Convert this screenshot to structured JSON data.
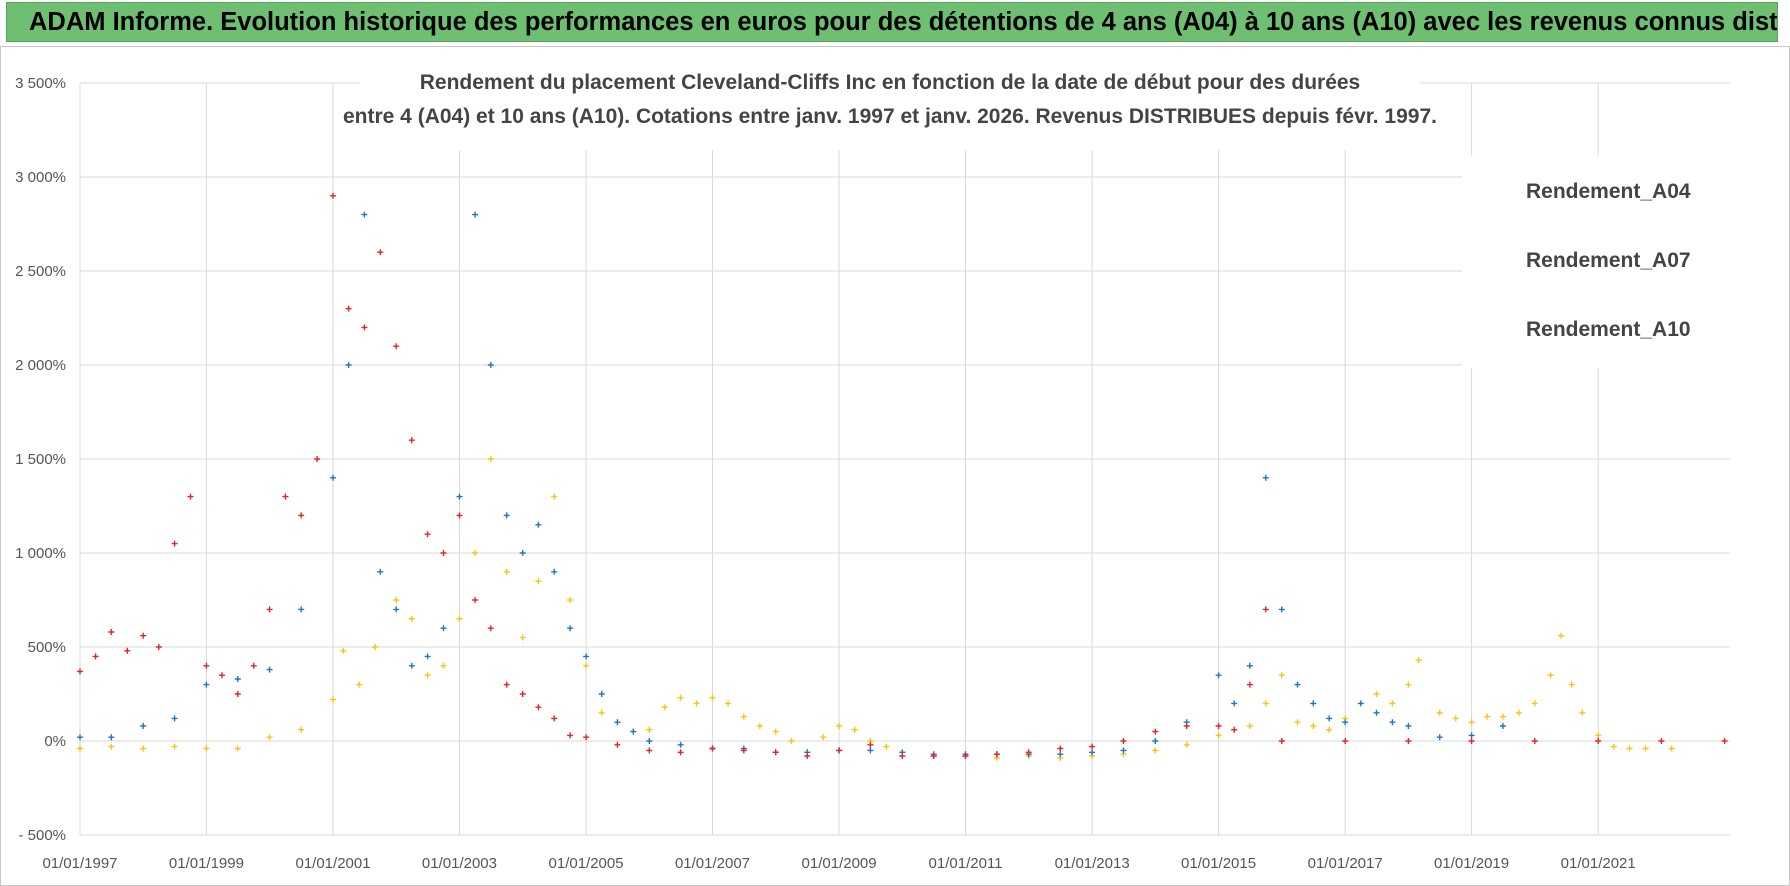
{
  "banner": {
    "title": "ADAM Informe. Evolution historique des performances en euros pour des détentions de 4 ans (A04) à 10 ans (A10) avec les revenus connus distribués"
  },
  "chart_data": {
    "type": "scatter",
    "title": "Rendement du placement Cleveland-Cliffs Inc en fonction de la date de début pour des durées",
    "subtitle": "entre 4 (A04) et 10 ans (A10). Cotations entre janv. 1997 et janv. 2026. Revenus DISTRIBUES depuis févr. 1997.",
    "xlabel": "",
    "ylabel": "",
    "x_range": [
      "1997-01-01",
      "2023-02-01"
    ],
    "ylim": [
      -500,
      3500
    ],
    "y_ticks": [
      -500,
      0,
      500,
      1000,
      1500,
      2000,
      2500,
      3000,
      3500
    ],
    "y_tick_labels": [
      "- 500%",
      "0%",
      "500%",
      "1 000%",
      "1 500%",
      "2 000%",
      "2 500%",
      "3 000%",
      "3 500%"
    ],
    "x_tick_labels": [
      "01/01/1997",
      "01/01/1999",
      "01/01/2001",
      "01/01/2003",
      "01/01/2005",
      "01/01/2007",
      "01/01/2009",
      "01/01/2011",
      "01/01/2013",
      "01/01/2015",
      "01/01/2017",
      "01/01/2019",
      "01/01/2021"
    ],
    "grid": true,
    "legend_position": "top-right",
    "series": [
      {
        "name": "Rendement_A04",
        "color": "#f5c518",
        "points": [
          [
            "1997-01-01",
            -40
          ],
          [
            "1997-07-01",
            -30
          ],
          [
            "1998-01-01",
            -40
          ],
          [
            "1998-07-01",
            -30
          ],
          [
            "1999-01-01",
            -40
          ],
          [
            "1999-07-01",
            -40
          ],
          [
            "2000-01-01",
            20
          ],
          [
            "2000-07-01",
            60
          ],
          [
            "2001-01-01",
            220
          ],
          [
            "2001-03-01",
            480
          ],
          [
            "2001-06-01",
            300
          ],
          [
            "2001-09-01",
            500
          ],
          [
            "2002-01-01",
            750
          ],
          [
            "2002-04-01",
            650
          ],
          [
            "2002-07-01",
            350
          ],
          [
            "2002-10-01",
            400
          ],
          [
            "2003-01-01",
            650
          ],
          [
            "2003-04-01",
            1000
          ],
          [
            "2003-07-01",
            1500
          ],
          [
            "2003-10-01",
            900
          ],
          [
            "2004-01-01",
            550
          ],
          [
            "2004-04-01",
            850
          ],
          [
            "2004-07-01",
            1300
          ],
          [
            "2004-10-01",
            750
          ],
          [
            "2005-01-01",
            400
          ],
          [
            "2005-04-01",
            150
          ],
          [
            "2005-07-01",
            100
          ],
          [
            "2005-10-01",
            50
          ],
          [
            "2006-01-01",
            60
          ],
          [
            "2006-04-01",
            180
          ],
          [
            "2006-07-01",
            230
          ],
          [
            "2006-10-01",
            200
          ],
          [
            "2007-01-01",
            230
          ],
          [
            "2007-04-01",
            200
          ],
          [
            "2007-07-01",
            130
          ],
          [
            "2007-10-01",
            80
          ],
          [
            "2008-01-01",
            50
          ],
          [
            "2008-04-01",
            0
          ],
          [
            "2008-07-01",
            -60
          ],
          [
            "2008-10-01",
            20
          ],
          [
            "2009-01-01",
            80
          ],
          [
            "2009-04-01",
            60
          ],
          [
            "2009-07-01",
            0
          ],
          [
            "2009-10-01",
            -30
          ],
          [
            "2010-01-01",
            -60
          ],
          [
            "2010-07-01",
            -80
          ],
          [
            "2011-01-01",
            -80
          ],
          [
            "2011-07-01",
            -90
          ],
          [
            "2012-01-01",
            -80
          ],
          [
            "2012-07-01",
            -90
          ],
          [
            "2013-01-01",
            -80
          ],
          [
            "2013-07-01",
            -70
          ],
          [
            "2014-01-01",
            -50
          ],
          [
            "2014-07-01",
            -20
          ],
          [
            "2015-01-01",
            30
          ],
          [
            "2015-04-01",
            60
          ],
          [
            "2015-07-01",
            80
          ],
          [
            "2015-10-01",
            200
          ],
          [
            "2016-01-01",
            350
          ],
          [
            "2016-04-01",
            100
          ],
          [
            "2016-07-01",
            80
          ],
          [
            "2016-10-01",
            60
          ],
          [
            "2017-01-01",
            120
          ],
          [
            "2017-04-01",
            200
          ],
          [
            "2017-07-01",
            250
          ],
          [
            "2017-10-01",
            200
          ],
          [
            "2018-01-01",
            300
          ],
          [
            "2018-03-01",
            430
          ],
          [
            "2018-07-01",
            150
          ],
          [
            "2018-10-01",
            120
          ],
          [
            "2019-01-01",
            100
          ],
          [
            "2019-04-01",
            130
          ],
          [
            "2019-07-01",
            130
          ],
          [
            "2019-10-01",
            150
          ],
          [
            "2020-01-01",
            200
          ],
          [
            "2020-04-01",
            350
          ],
          [
            "2020-06-01",
            560
          ],
          [
            "2020-08-01",
            300
          ],
          [
            "2020-10-01",
            150
          ],
          [
            "2021-01-01",
            30
          ],
          [
            "2021-04-01",
            -30
          ],
          [
            "2021-07-01",
            -40
          ],
          [
            "2021-10-01",
            -40
          ],
          [
            "2022-03-01",
            -40
          ]
        ]
      },
      {
        "name": "Rendement_A07",
        "color": "#1f77c4",
        "points": [
          [
            "1997-01-01",
            20
          ],
          [
            "1997-07-01",
            20
          ],
          [
            "1998-01-01",
            80
          ],
          [
            "1998-07-01",
            120
          ],
          [
            "1999-01-01",
            300
          ],
          [
            "1999-07-01",
            330
          ],
          [
            "2000-01-01",
            380
          ],
          [
            "2000-07-01",
            700
          ],
          [
            "2001-01-01",
            1400
          ],
          [
            "2001-04-01",
            2000
          ],
          [
            "2001-07-01",
            2800
          ],
          [
            "2001-10-01",
            900
          ],
          [
            "2002-01-01",
            700
          ],
          [
            "2002-04-01",
            400
          ],
          [
            "2002-07-01",
            450
          ],
          [
            "2002-10-01",
            600
          ],
          [
            "2003-01-01",
            1300
          ],
          [
            "2003-04-01",
            2800
          ],
          [
            "2003-07-01",
            2000
          ],
          [
            "2003-10-01",
            1200
          ],
          [
            "2004-01-01",
            1000
          ],
          [
            "2004-04-01",
            1150
          ],
          [
            "2004-07-01",
            900
          ],
          [
            "2004-10-01",
            600
          ],
          [
            "2005-01-01",
            450
          ],
          [
            "2005-04-01",
            250
          ],
          [
            "2005-07-01",
            100
          ],
          [
            "2005-10-01",
            50
          ],
          [
            "2006-01-01",
            0
          ],
          [
            "2006-07-01",
            -20
          ],
          [
            "2007-01-01",
            -40
          ],
          [
            "2007-07-01",
            -40
          ],
          [
            "2008-01-01",
            -60
          ],
          [
            "2008-07-01",
            -60
          ],
          [
            "2009-01-01",
            -50
          ],
          [
            "2009-07-01",
            -50
          ],
          [
            "2010-01-01",
            -60
          ],
          [
            "2010-07-01",
            -70
          ],
          [
            "2011-01-01",
            -70
          ],
          [
            "2011-07-01",
            -70
          ],
          [
            "2012-01-01",
            -70
          ],
          [
            "2012-07-01",
            -70
          ],
          [
            "2013-01-01",
            -60
          ],
          [
            "2013-07-01",
            -50
          ],
          [
            "2014-01-01",
            0
          ],
          [
            "2014-07-01",
            100
          ],
          [
            "2015-01-01",
            350
          ],
          [
            "2015-04-01",
            200
          ],
          [
            "2015-07-01",
            400
          ],
          [
            "2015-10-01",
            1400
          ],
          [
            "2016-01-01",
            700
          ],
          [
            "2016-04-01",
            300
          ],
          [
            "2016-07-01",
            200
          ],
          [
            "2016-10-01",
            120
          ],
          [
            "2017-01-01",
            100
          ],
          [
            "2017-04-01",
            200
          ],
          [
            "2017-07-01",
            150
          ],
          [
            "2017-10-01",
            100
          ],
          [
            "2018-01-01",
            80
          ],
          [
            "2018-07-01",
            20
          ],
          [
            "2019-01-01",
            30
          ],
          [
            "2019-07-01",
            80
          ]
        ]
      },
      {
        "name": "Rendement_A10",
        "color": "#e8232a",
        "points": [
          [
            "1997-01-01",
            370
          ],
          [
            "1997-04-01",
            450
          ],
          [
            "1997-07-01",
            580
          ],
          [
            "1997-10-01",
            480
          ],
          [
            "1998-01-01",
            560
          ],
          [
            "1998-04-01",
            500
          ],
          [
            "1998-07-01",
            1050
          ],
          [
            "1998-10-01",
            1300
          ],
          [
            "1999-01-01",
            400
          ],
          [
            "1999-04-01",
            350
          ],
          [
            "1999-07-01",
            250
          ],
          [
            "1999-10-01",
            400
          ],
          [
            "2000-01-01",
            700
          ],
          [
            "2000-04-01",
            1300
          ],
          [
            "2000-07-01",
            1200
          ],
          [
            "2000-10-01",
            1500
          ],
          [
            "2001-01-01",
            2900
          ],
          [
            "2001-04-01",
            2300
          ],
          [
            "2001-07-01",
            2200
          ],
          [
            "2001-10-01",
            2600
          ],
          [
            "2002-01-01",
            2100
          ],
          [
            "2002-04-01",
            1600
          ],
          [
            "2002-07-01",
            1100
          ],
          [
            "2002-10-01",
            1000
          ],
          [
            "2003-01-01",
            1200
          ],
          [
            "2003-04-01",
            750
          ],
          [
            "2003-07-01",
            600
          ],
          [
            "2003-10-01",
            300
          ],
          [
            "2004-01-01",
            250
          ],
          [
            "2004-04-01",
            180
          ],
          [
            "2004-07-01",
            120
          ],
          [
            "2004-10-01",
            30
          ],
          [
            "2005-01-01",
            20
          ],
          [
            "2005-07-01",
            -20
          ],
          [
            "2006-01-01",
            -50
          ],
          [
            "2006-07-01",
            -60
          ],
          [
            "2007-01-01",
            -40
          ],
          [
            "2007-07-01",
            -50
          ],
          [
            "2008-01-01",
            -60
          ],
          [
            "2008-07-01",
            -80
          ],
          [
            "2009-01-01",
            -50
          ],
          [
            "2009-07-01",
            -20
          ],
          [
            "2010-01-01",
            -80
          ],
          [
            "2010-07-01",
            -80
          ],
          [
            "2011-01-01",
            -80
          ],
          [
            "2011-07-01",
            -70
          ],
          [
            "2012-01-01",
            -60
          ],
          [
            "2012-07-01",
            -40
          ],
          [
            "2013-01-01",
            -30
          ],
          [
            "2013-07-01",
            0
          ],
          [
            "2014-01-01",
            50
          ],
          [
            "2014-07-01",
            80
          ],
          [
            "2015-01-01",
            80
          ],
          [
            "2015-04-01",
            60
          ],
          [
            "2015-07-01",
            300
          ],
          [
            "2015-10-01",
            700
          ],
          [
            "2016-01-01",
            0
          ],
          [
            "2017-01-01",
            0
          ],
          [
            "2018-01-01",
            0
          ],
          [
            "2019-01-01",
            0
          ],
          [
            "2020-01-01",
            0
          ],
          [
            "2021-01-01",
            0
          ],
          [
            "2022-01-01",
            0
          ],
          [
            "2023-01-01",
            0
          ]
        ]
      }
    ]
  }
}
